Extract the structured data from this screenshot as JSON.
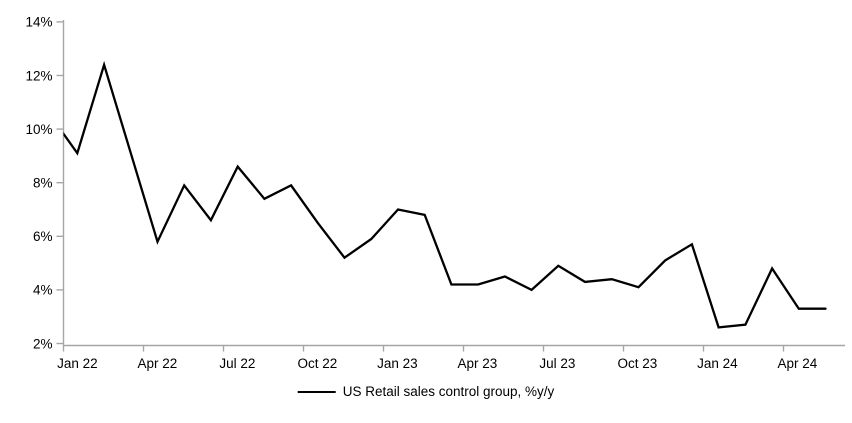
{
  "chart_data": {
    "type": "line",
    "title": "",
    "xlabel": "",
    "ylabel": "",
    "legend_position": "bottom-center",
    "grid": false,
    "background": "#ffffff",
    "axis_color": "#a6a6a6",
    "line_color": "#000000",
    "text_color": "#000000",
    "ylim": [
      2,
      14
    ],
    "ytick_step": 2,
    "ytick_labels": [
      "2%",
      "4%",
      "6%",
      "8%",
      "10%",
      "12%",
      "14%"
    ],
    "xtick_labels_shown": [
      "Jan 22",
      "Apr 22",
      "Jul 22",
      "Oct 22",
      "Jan 23",
      "Apr 23",
      "Jul 23",
      "Oct 23",
      "Jan 24",
      "Apr 24"
    ],
    "x": [
      "Dec 21",
      "Jan 22",
      "Feb 22",
      "Mar 22",
      "Apr 22",
      "May 22",
      "Jun 22",
      "Jul 22",
      "Aug 22",
      "Sep 22",
      "Oct 22",
      "Nov 22",
      "Dec 22",
      "Jan 23",
      "Feb 23",
      "Mar 23",
      "Apr 23",
      "May 23",
      "Jun 23",
      "Jul 23",
      "Aug 23",
      "Sep 23",
      "Oct 23",
      "Nov 23",
      "Dec 23",
      "Jan 24",
      "Feb 24",
      "Mar 24",
      "Apr 24",
      "May 24"
    ],
    "series": [
      {
        "name": "US Retail sales control group, %y/y",
        "values": [
          10.5,
          9.1,
          12.4,
          9.1,
          5.8,
          7.9,
          6.6,
          8.6,
          7.4,
          7.9,
          6.5,
          5.2,
          5.9,
          7.0,
          6.8,
          4.2,
          4.2,
          4.5,
          4.0,
          4.9,
          4.3,
          4.4,
          4.1,
          5.1,
          5.7,
          2.6,
          2.7,
          4.8,
          3.3,
          3.3
        ]
      }
    ],
    "notes": "First point (Dec 21) lies left of the y-axis and its segment is clipped at the plot edge."
  }
}
